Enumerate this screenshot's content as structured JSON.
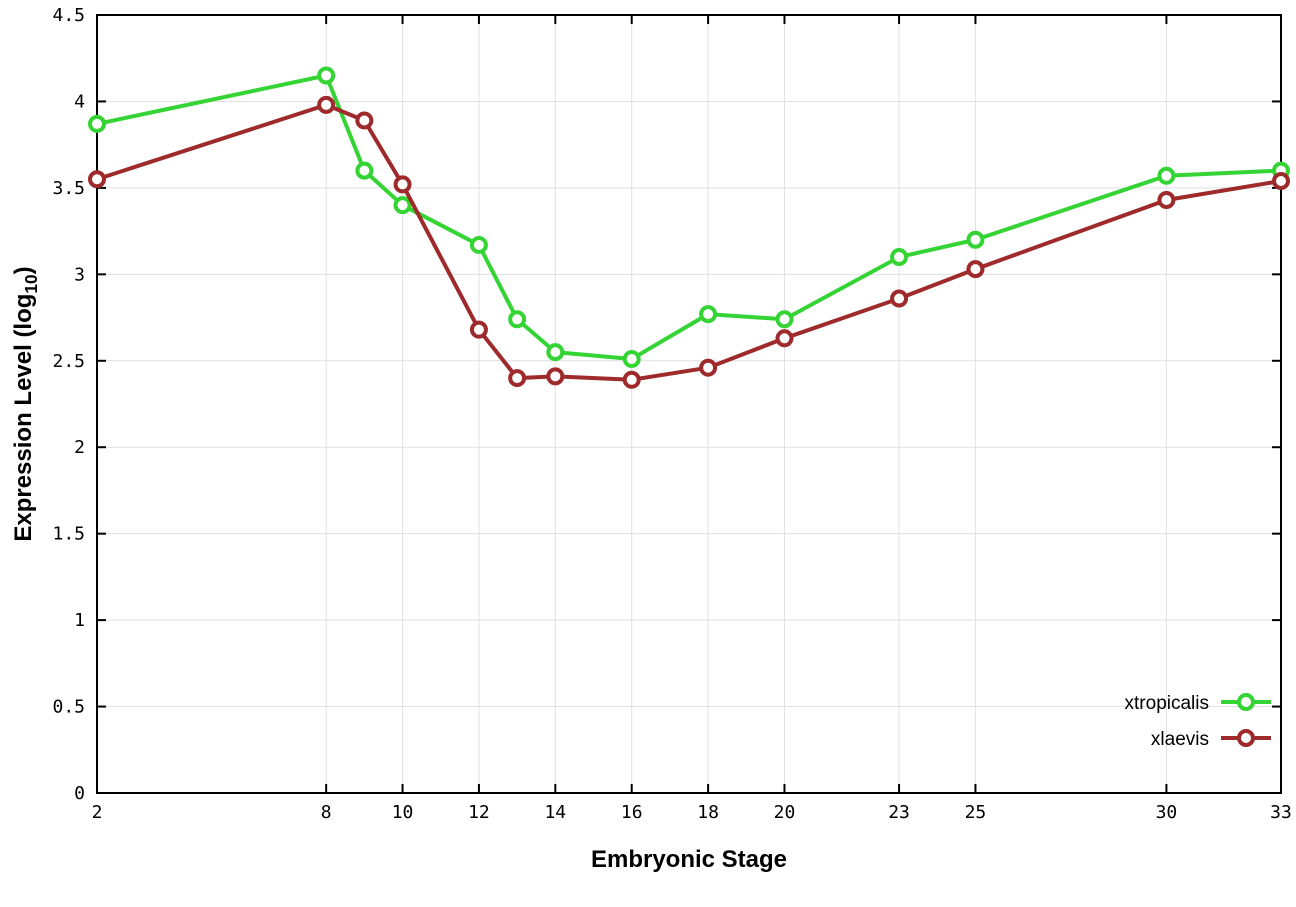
{
  "page": {
    "background": "#ffffff"
  },
  "chart_data": {
    "type": "line",
    "title": "",
    "xlabel": "Embryonic Stage",
    "ylabel": "Expression Level (log10)",
    "ylabel_parts": {
      "pre": "Expression Level (log",
      "sub": "10",
      "post": ")"
    },
    "xlim": [
      2,
      33
    ],
    "ylim": [
      0,
      4.5
    ],
    "x_ticks": [
      2,
      8,
      10,
      12,
      14,
      16,
      18,
      20,
      23,
      25,
      30,
      33
    ],
    "y_ticks": [
      0,
      0.5,
      1,
      1.5,
      2,
      2.5,
      3,
      3.5,
      4,
      4.5
    ],
    "grid": true,
    "grid_color": "#e0e0e0",
    "border_color": "#000000",
    "marker": "open-circle",
    "legend_position": "bottom-right",
    "legend_entries": [
      "xtropicalis",
      "xlaevis"
    ],
    "x": [
      2,
      8,
      9,
      10,
      12,
      13,
      14,
      16,
      18,
      20,
      23,
      25,
      30,
      33
    ],
    "series": [
      {
        "name": "xtropicalis",
        "color": "#35d435",
        "values": [
          3.87,
          4.15,
          3.6,
          3.4,
          3.17,
          2.74,
          2.55,
          2.51,
          2.77,
          2.74,
          3.1,
          3.2,
          3.57,
          3.6
        ]
      },
      {
        "name": "xlaevis",
        "color": "#9e2a2b",
        "values": [
          3.55,
          3.98,
          3.89,
          3.52,
          2.68,
          2.4,
          2.41,
          2.39,
          2.46,
          2.63,
          2.86,
          3.03,
          3.43,
          3.54
        ]
      }
    ]
  }
}
